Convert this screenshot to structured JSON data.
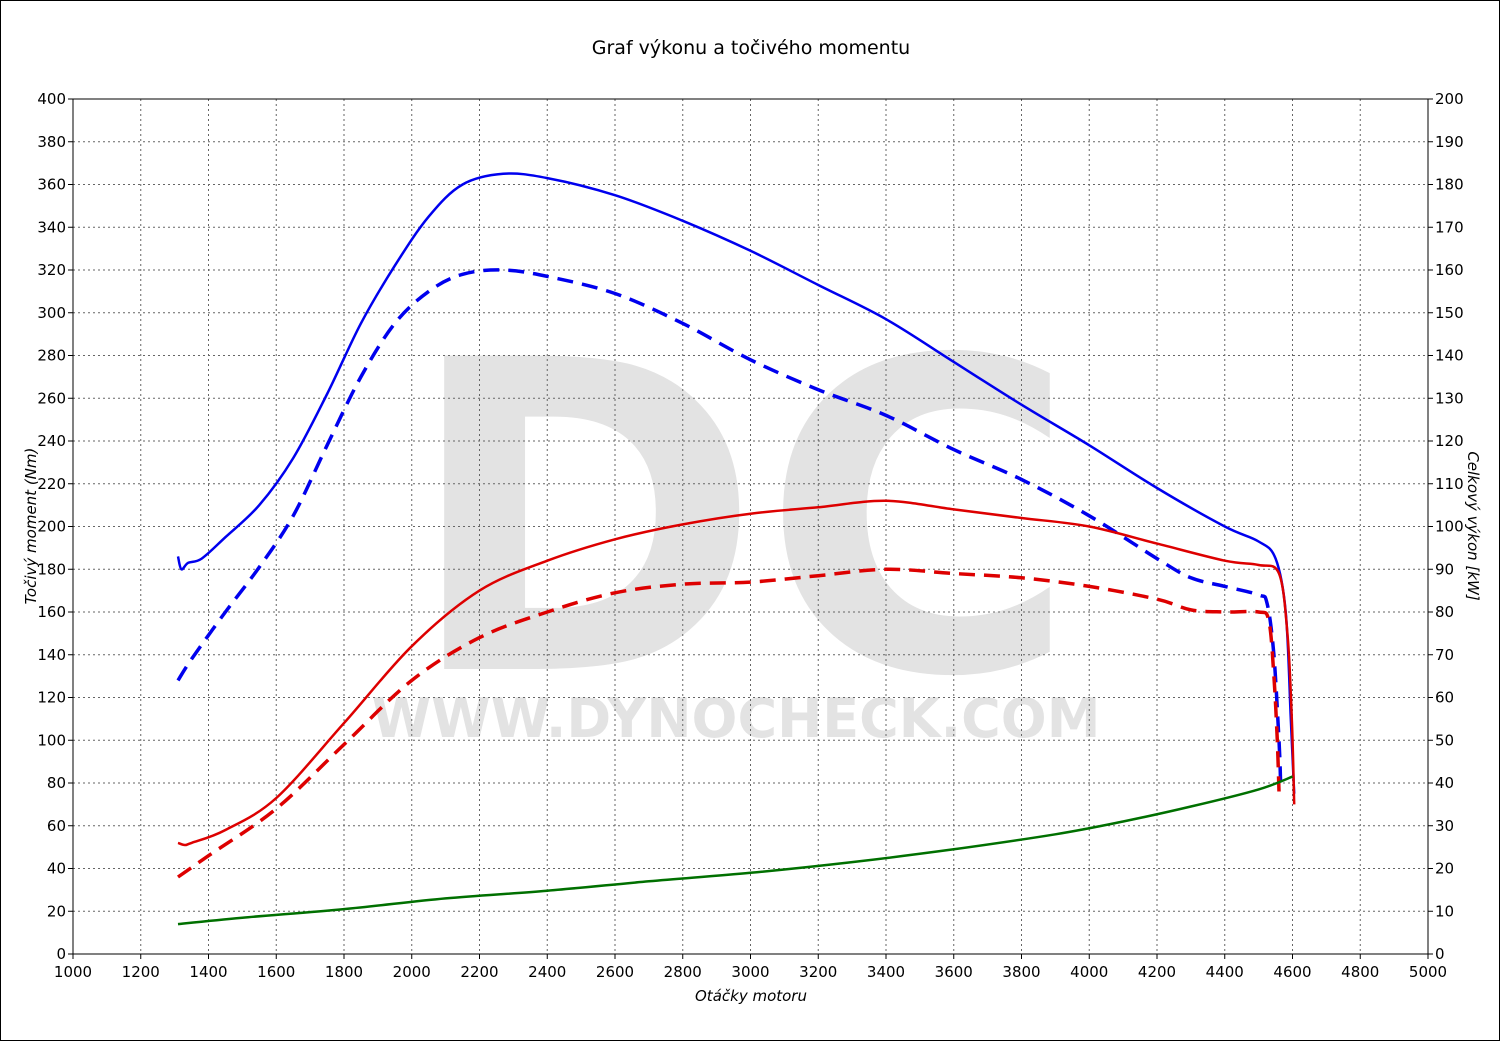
{
  "chart_data": {
    "type": "line",
    "title": "Graf výkonu a točivého momentu",
    "xlabel": "Otáčky motoru",
    "ylabel_left": "Točivý moment (Nm)",
    "ylabel_right": "Celkový výkon [kW]",
    "xlim": [
      1000,
      5000
    ],
    "ylim_left": [
      0,
      400
    ],
    "ylim_right": [
      0,
      200
    ],
    "x_ticks": [
      "1000",
      "1200",
      "1400",
      "1600",
      "1800",
      "2000",
      "2200",
      "2400",
      "2600",
      "2800",
      "3000",
      "3200",
      "3400",
      "3600",
      "3800",
      "4000",
      "4200",
      "4400",
      "4600",
      "4800",
      "5000"
    ],
    "y_ticks_left": [
      "0",
      "20",
      "40",
      "60",
      "80",
      "100",
      "120",
      "140",
      "160",
      "180",
      "200",
      "220",
      "240",
      "260",
      "280",
      "300",
      "320",
      "340",
      "360",
      "380",
      "400"
    ],
    "y_ticks_right": [
      "0",
      "10",
      "20",
      "30",
      "40",
      "50",
      "60",
      "70",
      "80",
      "90",
      "100",
      "110",
      "120",
      "130",
      "140",
      "150",
      "160",
      "170",
      "180",
      "190",
      "200"
    ],
    "grid": true,
    "watermark": {
      "logo": "DC",
      "url": "WWW.DYNOCHECK.COM"
    },
    "series": [
      {
        "axis": "left",
        "color": "#0000ee",
        "dash": "solid",
        "points": [
          [
            1310,
            186
          ],
          [
            1320,
            180
          ],
          [
            1340,
            183
          ],
          [
            1380,
            185
          ],
          [
            1450,
            195
          ],
          [
            1550,
            210
          ],
          [
            1650,
            232
          ],
          [
            1750,
            262
          ],
          [
            1850,
            295
          ],
          [
            1950,
            322
          ],
          [
            2050,
            345
          ],
          [
            2150,
            360
          ],
          [
            2270,
            365
          ],
          [
            2400,
            363
          ],
          [
            2600,
            355
          ],
          [
            2800,
            343
          ],
          [
            3000,
            329
          ],
          [
            3200,
            313
          ],
          [
            3400,
            297
          ],
          [
            3600,
            277
          ],
          [
            3800,
            257
          ],
          [
            4000,
            238
          ],
          [
            4200,
            218
          ],
          [
            4400,
            200
          ],
          [
            4500,
            193
          ],
          [
            4550,
            185
          ],
          [
            4580,
            160
          ],
          [
            4595,
            110
          ],
          [
            4605,
            75
          ]
        ]
      },
      {
        "axis": "left",
        "color": "#0000ee",
        "dash": "dashed",
        "points": [
          [
            1310,
            128
          ],
          [
            1350,
            138
          ],
          [
            1450,
            160
          ],
          [
            1550,
            181
          ],
          [
            1650,
            205
          ],
          [
            1750,
            238
          ],
          [
            1850,
            270
          ],
          [
            1950,
            295
          ],
          [
            2050,
            310
          ],
          [
            2150,
            318
          ],
          [
            2270,
            320
          ],
          [
            2400,
            317
          ],
          [
            2600,
            309
          ],
          [
            2800,
            295
          ],
          [
            3000,
            278
          ],
          [
            3200,
            264
          ],
          [
            3400,
            252
          ],
          [
            3600,
            236
          ],
          [
            3800,
            222
          ],
          [
            4000,
            205
          ],
          [
            4200,
            185
          ],
          [
            4300,
            176
          ],
          [
            4400,
            172
          ],
          [
            4500,
            168
          ],
          [
            4525,
            164
          ],
          [
            4545,
            140
          ],
          [
            4560,
            100
          ],
          [
            4565,
            80
          ]
        ]
      },
      {
        "axis": "right",
        "color": "#dd0000",
        "dash": "solid",
        "points": [
          [
            1310,
            26
          ],
          [
            1330,
            25.5
          ],
          [
            1350,
            26
          ],
          [
            1450,
            29
          ],
          [
            1600,
            36.5
          ],
          [
            1800,
            54
          ],
          [
            2000,
            72
          ],
          [
            2200,
            85
          ],
          [
            2400,
            92
          ],
          [
            2600,
            97
          ],
          [
            2800,
            100.5
          ],
          [
            3000,
            103
          ],
          [
            3200,
            104.5
          ],
          [
            3400,
            106
          ],
          [
            3600,
            104
          ],
          [
            3800,
            102
          ],
          [
            4000,
            100
          ],
          [
            4200,
            96
          ],
          [
            4400,
            92
          ],
          [
            4500,
            91
          ],
          [
            4560,
            89
          ],
          [
            4585,
            75
          ],
          [
            4598,
            55
          ],
          [
            4605,
            35
          ]
        ]
      },
      {
        "axis": "right",
        "color": "#dd0000",
        "dash": "dashed",
        "points": [
          [
            1310,
            18
          ],
          [
            1400,
            23
          ],
          [
            1600,
            34
          ],
          [
            1800,
            49
          ],
          [
            2000,
            64
          ],
          [
            2200,
            74
          ],
          [
            2400,
            80
          ],
          [
            2600,
            84.5
          ],
          [
            2800,
            86.5
          ],
          [
            3000,
            87
          ],
          [
            3200,
            88.5
          ],
          [
            3400,
            90
          ],
          [
            3600,
            89
          ],
          [
            3800,
            88
          ],
          [
            4000,
            86
          ],
          [
            4200,
            83
          ],
          [
            4300,
            80.5
          ],
          [
            4400,
            80
          ],
          [
            4500,
            80
          ],
          [
            4530,
            78
          ],
          [
            4545,
            65
          ],
          [
            4555,
            50
          ],
          [
            4560,
            38
          ]
        ]
      },
      {
        "axis": "right",
        "color": "#007000",
        "dash": "solid",
        "points": [
          [
            1310,
            7
          ],
          [
            1500,
            8.5
          ],
          [
            1800,
            10.5
          ],
          [
            2100,
            13
          ],
          [
            2400,
            14.8
          ],
          [
            2700,
            17
          ],
          [
            3000,
            19
          ],
          [
            3300,
            21.5
          ],
          [
            3600,
            24.5
          ],
          [
            3900,
            28
          ],
          [
            4100,
            31
          ],
          [
            4300,
            34.5
          ],
          [
            4500,
            38.5
          ],
          [
            4600,
            41.5
          ]
        ]
      }
    ]
  }
}
